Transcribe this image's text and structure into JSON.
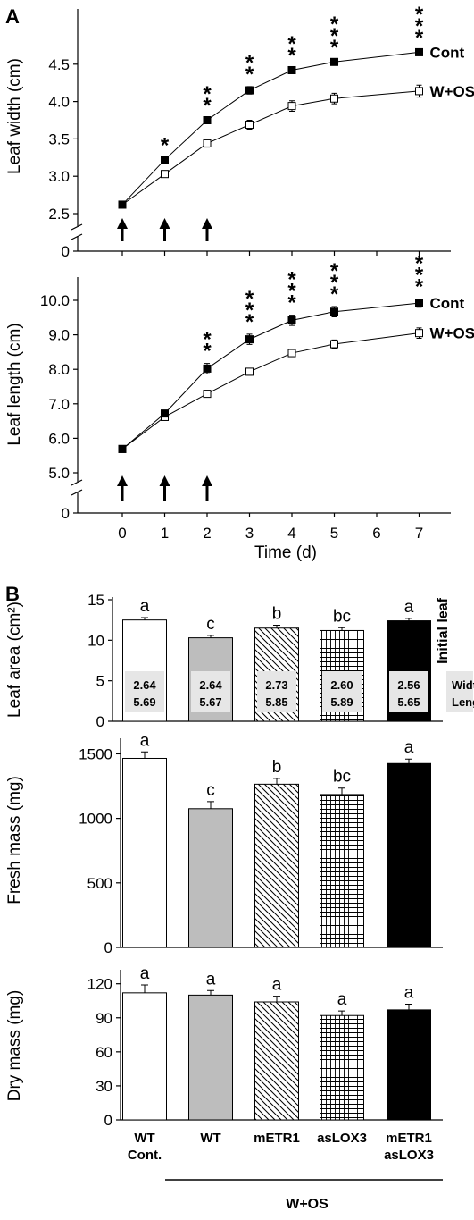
{
  "panel_a_label": "A",
  "panel_b_label": "B",
  "colors": {
    "ink": "#000000",
    "wt_ww": "#bdbdbd",
    "label_box": "#e6e6e6"
  },
  "chart_data": [
    {
      "id": "width",
      "type": "line",
      "ylabel": "Leaf width (cm)",
      "xlabel": "",
      "x": [
        0,
        1,
        2,
        3,
        4,
        5,
        7
      ],
      "ylim": [
        2.3,
        4.9
      ],
      "yticks": [
        "2.5",
        "3.0",
        "3.5",
        "4.0",
        "4.5"
      ],
      "ytick_values": [
        2.5,
        3.0,
        3.5,
        4.0,
        4.5
      ],
      "break_zero_label": "0",
      "series": [
        {
          "name": "Cont",
          "marker": "filled",
          "values": [
            2.62,
            3.22,
            3.75,
            4.15,
            4.42,
            4.53,
            4.66
          ],
          "err": [
            0.02,
            0.03,
            0.03,
            0.05,
            0.03,
            0.03,
            0.03
          ]
        },
        {
          "name": "W+OS",
          "marker": "open",
          "values": [
            2.62,
            3.03,
            3.44,
            3.69,
            3.94,
            4.04,
            4.14
          ],
          "err": [
            0.02,
            0.04,
            0.05,
            0.06,
            0.07,
            0.07,
            0.08
          ]
        }
      ],
      "significance": [
        "",
        "*",
        "**",
        "**",
        "**",
        "***",
        "***"
      ],
      "arrows_at": [
        0,
        1,
        2
      ]
    },
    {
      "id": "length",
      "type": "line",
      "ylabel": "Leaf length (cm)",
      "xlabel": "Time (d)",
      "x": [
        0,
        1,
        2,
        3,
        4,
        5,
        7
      ],
      "ylim": [
        4.6,
        10.3
      ],
      "yticks": [
        "5.0",
        "6.0",
        "7.0",
        "8.0",
        "9.0",
        "10.0"
      ],
      "ytick_values": [
        5,
        6,
        7,
        8,
        9,
        10
      ],
      "xticks": [
        "0",
        "1",
        "2",
        "3",
        "4",
        "5",
        "6",
        "7"
      ],
      "xtick_values": [
        0,
        1,
        2,
        3,
        4,
        5,
        6,
        7
      ],
      "break_zero_label": "0",
      "series": [
        {
          "name": "Cont",
          "marker": "filled",
          "values": [
            5.69,
            6.72,
            8.02,
            8.87,
            9.42,
            9.67,
            9.92
          ],
          "err": [
            0.08,
            0.08,
            0.15,
            0.15,
            0.15,
            0.15,
            0.12
          ]
        },
        {
          "name": "W+OS",
          "marker": "open",
          "values": [
            5.69,
            6.62,
            7.29,
            7.93,
            8.47,
            8.73,
            9.05
          ],
          "err": [
            0.08,
            0.08,
            0.08,
            0.1,
            0.1,
            0.12,
            0.15
          ]
        }
      ],
      "significance": [
        "",
        "",
        "**",
        "***",
        "***",
        "***",
        "***"
      ],
      "arrows_at": [
        0,
        1,
        2
      ]
    },
    {
      "id": "area",
      "type": "bar",
      "ylabel": "Leaf area (cm²)",
      "ylim": [
        0,
        15
      ],
      "yticks": [
        "0",
        "5",
        "10",
        "15"
      ],
      "ytick_values": [
        0,
        5,
        10,
        15
      ],
      "values": [
        12.5,
        10.3,
        11.5,
        11.2,
        12.4
      ],
      "err": [
        0.3,
        0.3,
        0.35,
        0.35,
        0.3
      ],
      "letters": [
        "a",
        "c",
        "b",
        "bc",
        "a"
      ],
      "initial_leaf_label": "Initial leaf",
      "width_label": "Width",
      "length_label": "Length",
      "initial_width": [
        "2.64",
        "2.64",
        "2.73",
        "2.60",
        "2.56"
      ],
      "initial_length": [
        "5.69",
        "5.67",
        "5.85",
        "5.89",
        "5.65"
      ]
    },
    {
      "id": "fresh",
      "type": "bar",
      "ylabel": "Fresh mass (mg)",
      "ylim": [
        0,
        1600
      ],
      "yticks": [
        "0",
        "500",
        "1000",
        "1500"
      ],
      "ytick_values": [
        0,
        500,
        1000,
        1500
      ],
      "values": [
        1465,
        1075,
        1265,
        1185,
        1425
      ],
      "err": [
        50,
        55,
        45,
        50,
        35
      ],
      "letters": [
        "a",
        "c",
        "b",
        "bc",
        "a"
      ]
    },
    {
      "id": "dry",
      "type": "bar",
      "ylabel": "Dry mass (mg)",
      "ylim": [
        0,
        130
      ],
      "yticks": [
        "0",
        "30",
        "60",
        "90",
        "120"
      ],
      "ytick_values": [
        0,
        30,
        60,
        90,
        120
      ],
      "values": [
        112,
        110,
        104,
        92,
        97
      ],
      "err": [
        7,
        4,
        5,
        4,
        5
      ],
      "letters": [
        "a",
        "a",
        "a",
        "a",
        "a"
      ],
      "categories": [
        [
          "WT",
          "Cont."
        ],
        [
          "WT"
        ],
        [
          "mETR1"
        ],
        [
          "asLOX3"
        ],
        [
          "mETR1",
          "asLOX3"
        ]
      ],
      "group_label": "W+OS"
    }
  ]
}
